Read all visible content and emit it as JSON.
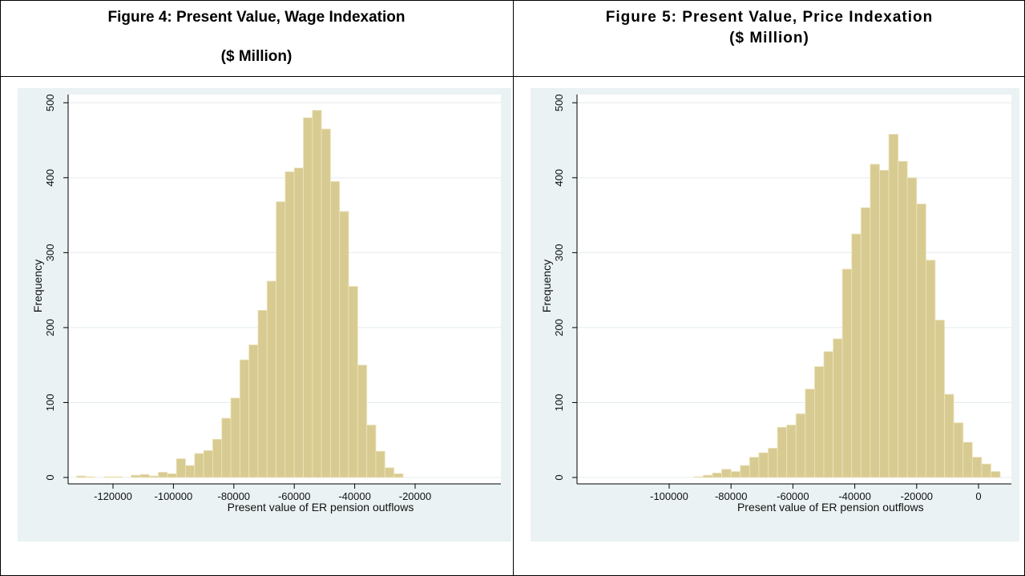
{
  "chart_data": [
    {
      "type": "histogram",
      "title": "Figure 4: Present Value, Wage Indexation",
      "subtitle": "($ Million)",
      "xlabel": "Present value of ER pension outflows",
      "ylabel": "Frequency",
      "color": "#d8cb92",
      "bins": [
        -132000,
        -129000,
        -126000,
        -123000,
        -120000,
        -117000,
        -114000,
        -111000,
        -108000,
        -105000,
        -102000,
        -99000,
        -96000,
        -93000,
        -90000,
        -87000,
        -84000,
        -81000,
        -78000,
        -75000,
        -72000,
        -69000,
        -66000,
        -63000,
        -60000,
        -57000,
        -54000,
        -51000,
        -48000,
        -45000,
        -42000,
        -39000,
        -36000,
        -33000,
        -30000,
        -27000,
        -24000
      ],
      "values": [
        2,
        1,
        0,
        1,
        1,
        0,
        3,
        4,
        2,
        7,
        5,
        25,
        16,
        32,
        36,
        51,
        79,
        106,
        157,
        177,
        223,
        262,
        368,
        408,
        413,
        480,
        490,
        465,
        395,
        355,
        255,
        150,
        70,
        35,
        13,
        5
      ],
      "xlim": [
        -134850,
        8380
      ],
      "xticks": [
        -120000,
        -100000,
        -80000,
        -60000,
        -40000,
        -20000
      ],
      "ylim": [
        0,
        511
      ],
      "yticks": [
        0,
        100,
        200,
        300,
        400,
        500
      ],
      "grid": true
    },
    {
      "type": "histogram",
      "title": "Figure 5:  Present Value, Price Indexation",
      "subtitle": "($ Million)",
      "xlabel": "Present value of ER pension outflows",
      "ylabel": "Frequency",
      "color": "#d8cb92",
      "bins": [
        -92000,
        -89000,
        -86000,
        -83000,
        -80000,
        -77000,
        -74000,
        -71000,
        -68000,
        -65000,
        -62000,
        -59000,
        -56000,
        -53000,
        -50000,
        -47000,
        -44000,
        -41000,
        -38000,
        -35000,
        -32000,
        -29000,
        -26000,
        -23000,
        -20000,
        -17000,
        -14000,
        -11000,
        -8000,
        -5000,
        -2000,
        1000,
        4000,
        7000
      ],
      "values": [
        1,
        3,
        6,
        11,
        8,
        16,
        27,
        33,
        39,
        67,
        70,
        85,
        118,
        148,
        168,
        185,
        278,
        325,
        360,
        418,
        410,
        458,
        422,
        400,
        365,
        290,
        210,
        111,
        73,
        47,
        27,
        18,
        8
      ],
      "xlim": [
        -129790,
        10620
      ],
      "xticks": [
        -100000,
        -80000,
        -60000,
        -40000,
        -20000,
        0
      ],
      "ylim": [
        0,
        511
      ],
      "yticks": [
        0,
        100,
        200,
        300,
        400,
        500
      ],
      "grid": true
    }
  ]
}
